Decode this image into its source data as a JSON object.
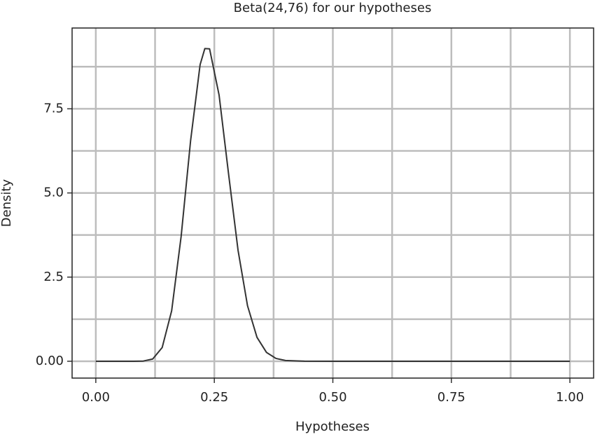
{
  "chart_data": {
    "type": "line",
    "title": "Beta(24,76) for our hypotheses",
    "x_label": "Hypotheses",
    "y_label": "Density",
    "x": [
      0,
      0.05,
      0.08,
      0.1,
      0.12,
      0.14,
      0.16,
      0.18,
      0.2,
      0.22,
      0.23,
      0.24,
      0.26,
      0.28,
      0.3,
      0.32,
      0.34,
      0.36,
      0.38,
      0.4,
      0.44,
      0.5,
      0.75,
      1
    ],
    "series": [
      {
        "color": "#333333",
        "values": [
          0,
          0,
          0.0003,
          0.0054,
          0.066,
          0.407,
          1.5,
          3.71,
          6.56,
          8.81,
          9.29,
          9.28,
          7.91,
          5.57,
          3.3,
          1.65,
          0.71,
          0.263,
          0.084,
          0.023,
          0.001,
          0,
          0,
          0
        ]
      }
    ],
    "xlim": [
      -0.05,
      1.05
    ],
    "ylim": [
      -0.5,
      9.9
    ],
    "xticks": [
      {
        "value": 0,
        "label": "0.00"
      },
      0.25,
      {
        "value": 0.5,
        "label": "0.50"
      },
      0.75,
      {
        "value": 1,
        "label": "1.00"
      }
    ],
    "yticks": [
      {
        "value": 0,
        "label": "0.00"
      },
      2.5,
      {
        "value": 5,
        "label": "5.0"
      },
      7.5
    ],
    "x_minor_grid": [
      0.125,
      0.375,
      0.625,
      0.875
    ],
    "y_minor_grid": [
      1.25,
      3.75,
      6.25,
      8.75
    ],
    "grid": true
  }
}
